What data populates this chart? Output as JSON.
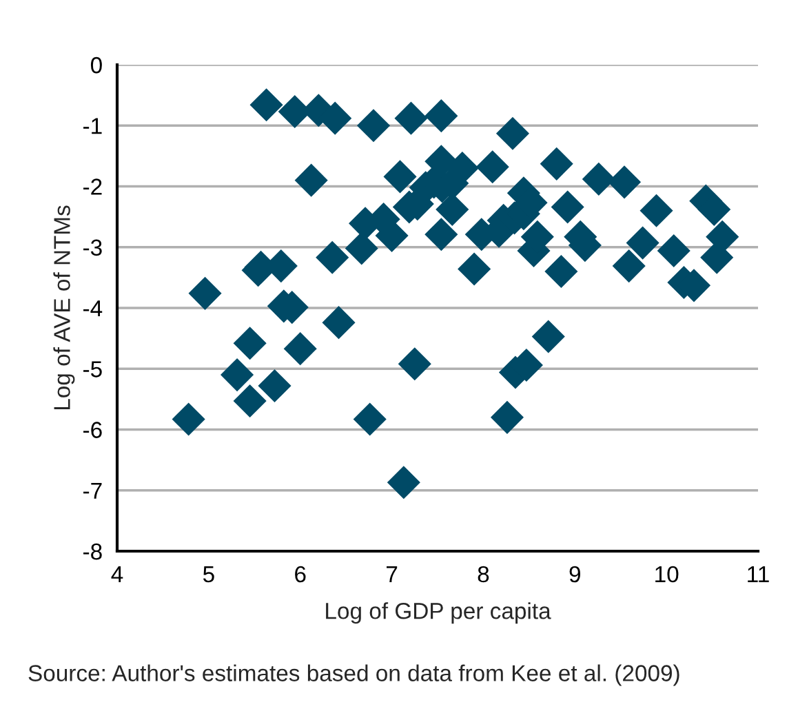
{
  "chart_data": {
    "type": "scatter",
    "xlabel": "Log of GDP per capita",
    "ylabel": "Log of AVE of NTMs",
    "annotations": [
      "Source: Author's estimates based on data from Kee et al. (2009)"
    ],
    "x": [
      4.78,
      4.96,
      5.31,
      5.45,
      5.45,
      5.54,
      5.57,
      5.63,
      5.72,
      5.79,
      5.82,
      5.91,
      5.94,
      6.0,
      6.12,
      6.2,
      6.35,
      6.38,
      6.42,
      6.67,
      6.71,
      6.76,
      6.8,
      6.91,
      7.0,
      7.09,
      7.13,
      7.19,
      7.21,
      7.25,
      7.28,
      7.37,
      7.46,
      7.55,
      7.54,
      7.54,
      7.54,
      7.66,
      7.66,
      7.77,
      7.9,
      7.98,
      8.1,
      8.17,
      8.22,
      8.26,
      8.32,
      8.34,
      8.35,
      8.44,
      8.44,
      8.47,
      8.52,
      8.55,
      8.59,
      8.71,
      8.8,
      8.85,
      8.92,
      9.06,
      9.11,
      9.26,
      9.54,
      9.59,
      9.74,
      9.89,
      10.08,
      10.19,
      10.3,
      10.43,
      10.52,
      10.55,
      10.61
    ],
    "series": [
      {
        "color": "#004a66",
        "values": [
          -5.83,
          -3.76,
          -5.1,
          -4.58,
          -5.53,
          -3.38,
          -3.33,
          -0.66,
          -5.28,
          -3.31,
          -3.97,
          -3.99,
          -0.77,
          -4.67,
          -1.9,
          -0.75,
          -3.17,
          -0.88,
          -4.24,
          -3.02,
          -2.61,
          -5.83,
          -1.0,
          -2.54,
          -2.81,
          -1.84,
          -6.87,
          -2.34,
          -0.88,
          -4.92,
          -2.29,
          -2.02,
          -1.93,
          -2.0,
          -0.84,
          -1.59,
          -2.79,
          -1.95,
          -2.38,
          -1.7,
          -3.36,
          -2.79,
          -1.68,
          -2.74,
          -2.56,
          -5.8,
          -1.13,
          -2.52,
          -5.06,
          -2.45,
          -2.11,
          -4.94,
          -2.27,
          -3.06,
          -2.83,
          -4.47,
          -1.63,
          -3.4,
          -2.34,
          -2.83,
          -2.97,
          -1.88,
          -1.93,
          -3.31,
          -2.93,
          -2.4,
          -3.06,
          -3.58,
          -3.63,
          -2.24,
          -2.38,
          -3.17,
          -2.83
        ]
      }
    ],
    "marker": "diamond",
    "xlim": [
      4,
      11
    ],
    "xticks": [
      4,
      5,
      6,
      7,
      8,
      9,
      10,
      11
    ],
    "ylim": [
      -8,
      0
    ],
    "yticks": [
      0,
      -1,
      -2,
      -3,
      -4,
      -5,
      -6,
      -7,
      -8
    ],
    "grid": "y",
    "legend": false
  }
}
